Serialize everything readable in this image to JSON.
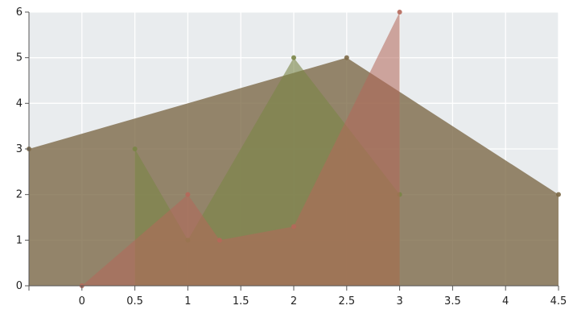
{
  "chart_data": {
    "type": "area",
    "title": "",
    "xlabel": "",
    "ylabel": "",
    "xlim": [
      -0.5,
      4.5
    ],
    "ylim": [
      0,
      6
    ],
    "x_ticks": [
      0,
      0.5,
      1,
      1.5,
      2,
      2.5,
      3,
      3.5,
      4,
      4.5
    ],
    "x_tick_labels": [
      "0",
      "0.5",
      "1",
      "1.5",
      "2",
      "2.5",
      "3",
      "3.5",
      "4",
      "4.5"
    ],
    "y_ticks": [
      0,
      1,
      2,
      3,
      4,
      5,
      6
    ],
    "y_tick_labels": [
      "0",
      "1",
      "2",
      "3",
      "4",
      "5",
      "6"
    ],
    "grid": true,
    "background_color": "#e9ecee",
    "series": [
      {
        "x": [
          -0.5,
          2.5,
          4.5
        ],
        "y": [
          3,
          5,
          2
        ],
        "color": "#7d6a48",
        "fill_opacity": 0.8
      },
      {
        "x": [
          0.5,
          1,
          2,
          3
        ],
        "y": [
          3,
          1,
          5,
          2
        ],
        "color": "#7a8546",
        "fill_opacity": 0.6
      },
      {
        "x": [
          0,
          1,
          1.3,
          2,
          3
        ],
        "y": [
          0,
          2,
          1,
          1.3,
          6
        ],
        "color": "#b5685a",
        "fill_opacity": 0.55
      }
    ]
  }
}
